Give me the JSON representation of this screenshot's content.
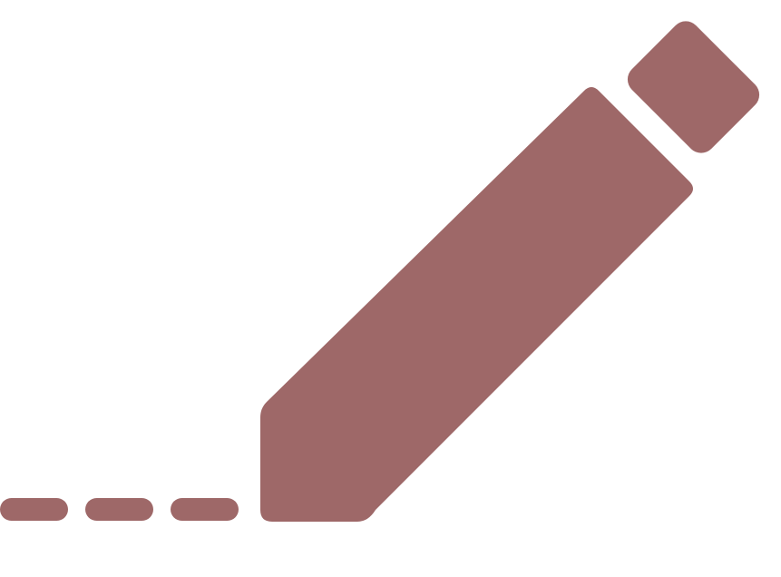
{
  "icon": {
    "name": "edit-pencil-icon",
    "color": "#9e6868",
    "background": "#ffffff"
  }
}
